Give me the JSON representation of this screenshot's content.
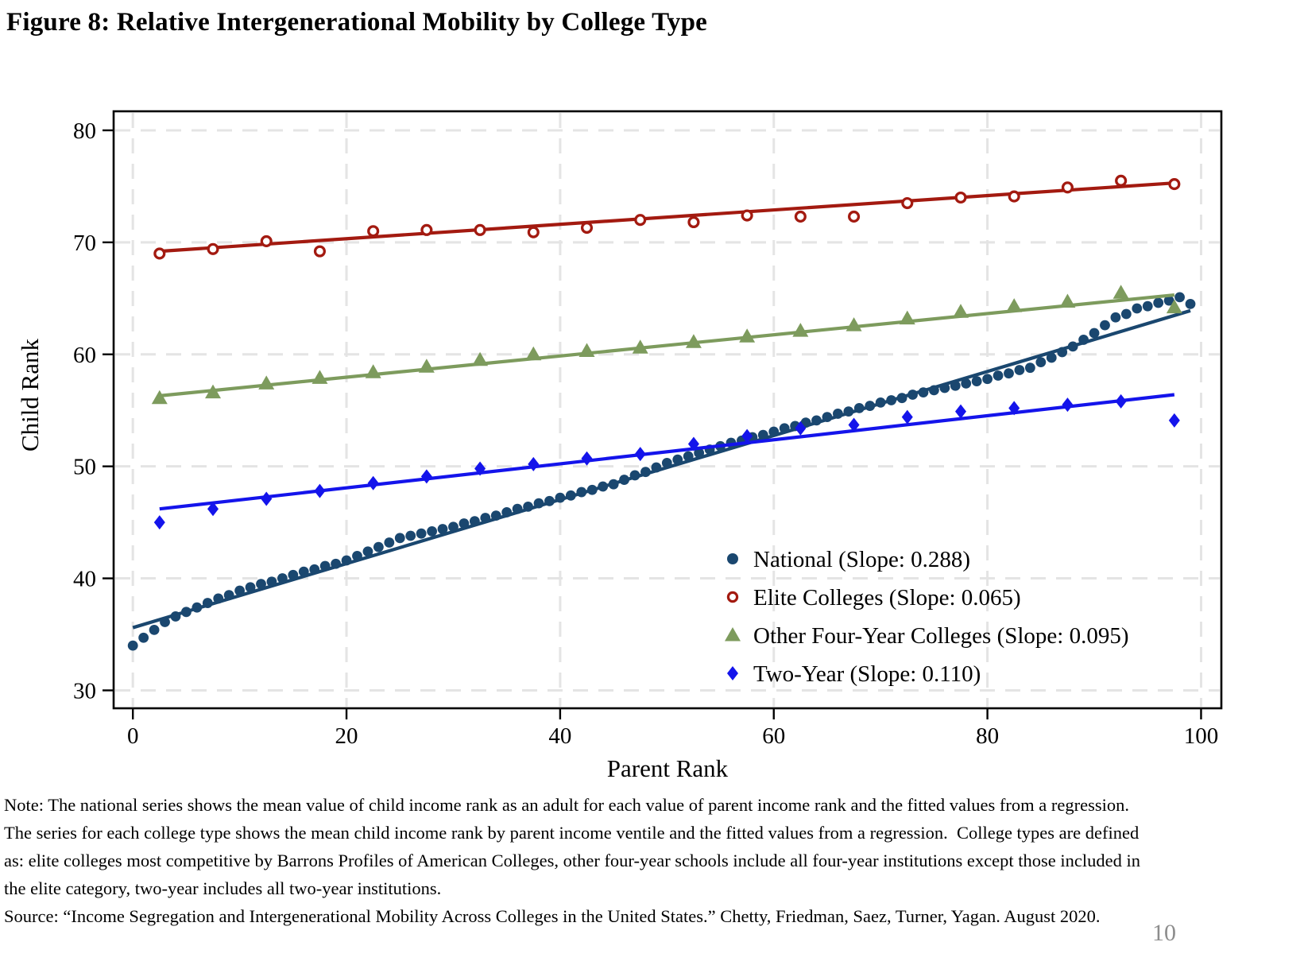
{
  "title": "Figure 8: Relative Intergenerational Mobility by College Type",
  "page_number": "10",
  "note_lines": [
    "Note: The national series shows the mean value of child income rank as an adult for each value of parent income rank and the fitted values from a regression.",
    "The series for each college type shows the mean child income rank by parent income ventile and the fitted values from a regression.  College types are defined",
    "as: elite colleges most competitive by Barrons Profiles of American Colleges, other four-year schools include all four-year institutions except those included in",
    "the elite category, two-year includes all two-year institutions."
  ],
  "source_line": "Source: “Income Segregation and Intergenerational Mobility Across Colleges in the United States.” Chetty, Friedman, Saez, Turner, Yagan. August 2020.",
  "chart_data": {
    "type": "scatter",
    "xlabel": "Parent Rank",
    "ylabel": "Child Rank",
    "x_ticks": [
      0,
      20,
      40,
      60,
      80,
      100
    ],
    "y_ticks": [
      30,
      40,
      50,
      60,
      70,
      80
    ],
    "xlim": [
      -1.8,
      101.9
    ],
    "ylim": [
      28.4,
      81.7
    ],
    "grid": "both-axes dashed light gray",
    "grid_color": "#e4e4e4",
    "legend_position": "inside right-center, no frame",
    "ventile_x": [
      2.5,
      7.5,
      12.5,
      17.5,
      22.5,
      27.5,
      32.5,
      37.5,
      42.5,
      47.5,
      52.5,
      57.5,
      62.5,
      67.5,
      72.5,
      77.5,
      82.5,
      87.5,
      92.5,
      97.5
    ],
    "series": [
      {
        "name": "National (Slope: 0.288)",
        "slope": 0.288,
        "marker": "filled-circle",
        "color": "#1a476f",
        "x_start": 0,
        "x_step": 1,
        "values": [
          34.0,
          34.7,
          35.4,
          36.1,
          36.6,
          37.0,
          37.4,
          37.8,
          38.2,
          38.5,
          38.9,
          39.2,
          39.5,
          39.7,
          40.0,
          40.3,
          40.6,
          40.8,
          41.1,
          41.3,
          41.6,
          42.0,
          42.4,
          42.8,
          43.2,
          43.6,
          43.8,
          44.0,
          44.2,
          44.4,
          44.6,
          44.9,
          45.1,
          45.4,
          45.6,
          45.9,
          46.2,
          46.4,
          46.7,
          46.9,
          47.2,
          47.4,
          47.7,
          47.9,
          48.2,
          48.4,
          48.8,
          49.2,
          49.5,
          49.9,
          50.3,
          50.6,
          50.9,
          51.2,
          51.5,
          51.8,
          52.1,
          52.3,
          52.6,
          52.8,
          53.1,
          53.4,
          53.6,
          53.9,
          54.1,
          54.4,
          54.7,
          54.9,
          55.2,
          55.4,
          55.7,
          55.9,
          56.1,
          56.4,
          56.6,
          56.8,
          57.0,
          57.2,
          57.4,
          57.6,
          57.8,
          58.1,
          58.3,
          58.6,
          58.8,
          59.3,
          59.7,
          60.2,
          60.7,
          61.3,
          61.9,
          62.6,
          63.3,
          63.6,
          64.1,
          64.3,
          64.6,
          64.8,
          65.1,
          64.5
        ],
        "fit_line": {
          "x": [
            0,
            99
          ],
          "y": [
            35.6,
            63.9
          ]
        }
      },
      {
        "name": "Elite Colleges (Slope: 0.065)",
        "slope": 0.065,
        "marker": "open-circle",
        "color": "#a31a10",
        "use_ventile_x": true,
        "values": [
          69.0,
          69.4,
          70.1,
          69.2,
          71.0,
          71.1,
          71.1,
          70.9,
          71.3,
          72.0,
          71.8,
          72.4,
          72.3,
          72.3,
          73.5,
          74.0,
          74.1,
          74.9,
          75.5,
          75.2
        ],
        "fit_line": {
          "x": [
            2.5,
            97.5
          ],
          "y": [
            69.2,
            75.3
          ]
        }
      },
      {
        "name": "Other Four-Year Colleges (Slope: 0.095)",
        "slope": 0.095,
        "marker": "filled-triangle",
        "color": "#7d9b5d",
        "use_ventile_x": true,
        "values": [
          56.1,
          56.6,
          57.4,
          57.9,
          58.4,
          58.9,
          59.5,
          60.0,
          60.3,
          60.6,
          61.1,
          61.6,
          62.1,
          62.6,
          63.2,
          63.8,
          64.3,
          64.7,
          65.5,
          64.2
        ],
        "fit_line": {
          "x": [
            2.5,
            97.5
          ],
          "y": [
            56.3,
            65.3
          ]
        }
      },
      {
        "name": "Two-Year (Slope: 0.110)",
        "slope": 0.11,
        "marker": "filled-diamond",
        "color": "#1414eb",
        "use_ventile_x": true,
        "values": [
          45.0,
          46.2,
          47.1,
          47.8,
          48.5,
          49.1,
          49.8,
          50.2,
          50.7,
          51.1,
          52.0,
          52.7,
          53.4,
          53.7,
          54.4,
          54.9,
          55.2,
          55.5,
          55.8,
          54.1
        ],
        "fit_line": {
          "x": [
            2.5,
            97.5
          ],
          "y": [
            46.2,
            56.4
          ]
        }
      }
    ]
  }
}
